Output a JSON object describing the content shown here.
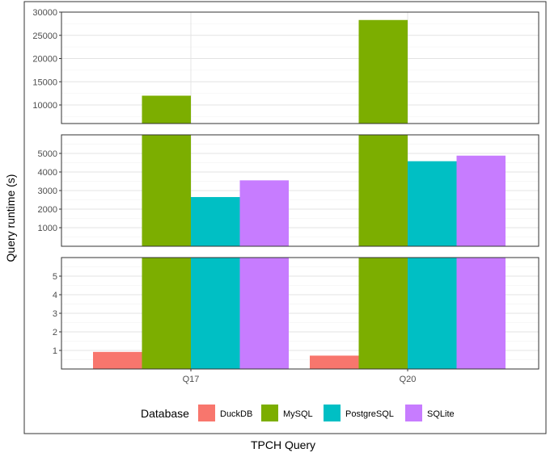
{
  "chart_data": {
    "type": "bar",
    "xlabel": "TPCH Query",
    "ylabel": "Query runtime (s)",
    "categories": [
      "Q17",
      "Q20"
    ],
    "series": [
      {
        "name": "DuckDB",
        "color": "#F8766D",
        "values": [
          0.92,
          0.72
        ]
      },
      {
        "name": "MySQL",
        "color": "#7CAE00",
        "values": [
          12000,
          28300
        ]
      },
      {
        "name": "PostgreSQL",
        "color": "#00BFC4",
        "values": [
          2650,
          4580
        ]
      },
      {
        "name": "SQLite",
        "color": "#C77CFF",
        "values": [
          3550,
          4880
        ]
      }
    ],
    "legend": {
      "title": "Database",
      "position": "bottom"
    },
    "grid": true,
    "panels": [
      {
        "ylim": [
          6000,
          30000
        ],
        "ticks": [
          10000,
          15000,
          20000,
          25000,
          30000
        ]
      },
      {
        "ylim": [
          0,
          6000
        ],
        "ticks": [
          1000,
          2000,
          3000,
          4000,
          5000
        ]
      },
      {
        "ylim": [
          0,
          6
        ],
        "ticks": [
          1,
          2,
          3,
          4,
          5
        ]
      }
    ]
  }
}
